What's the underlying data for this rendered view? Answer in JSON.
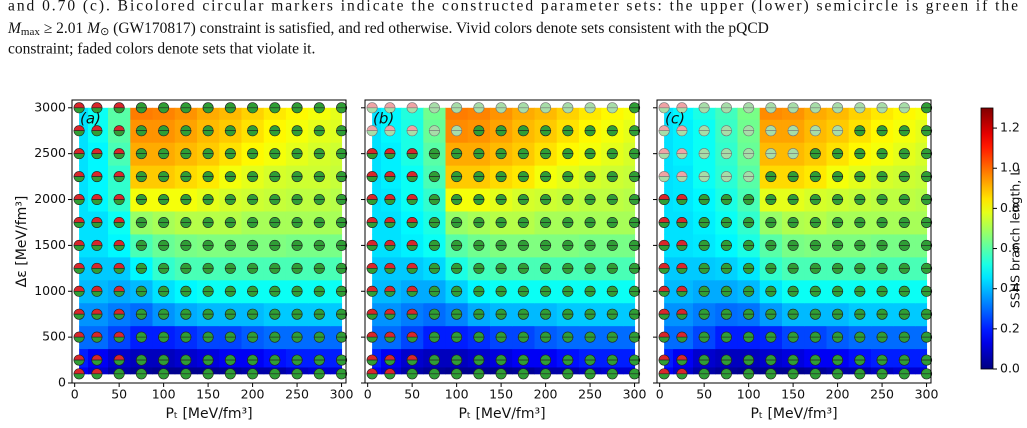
{
  "caption": {
    "line1": "and 0.70 (c). Bicolored circular markers indicate the constructed parameter sets: the upper (lower) semicircle is green if the",
    "line2": [
      "M",
      "max",
      " ≥ 2.01 ",
      "M",
      "⊙",
      " (GW170817) constraint is satisfied, and red otherwise. Vivid colors denote sets consistent with the pQCD"
    ],
    "line3": "constraint; faded colors denote sets that violate it."
  },
  "chart_data": [
    {
      "type": "heatmap",
      "label": "(a)",
      "xlabel": "Pₜ [MeV/fm³]",
      "ylabel": "Δε [MeV/fm³]",
      "x": [
        5,
        25,
        50,
        75,
        100,
        125,
        150,
        175,
        200,
        225,
        250,
        275,
        300
      ],
      "y": [
        100,
        250,
        500,
        750,
        1000,
        1250,
        1500,
        1750,
        2000,
        2250,
        2500,
        2750,
        3000
      ],
      "values": [
        [
          0.15,
          0.1,
          0.05,
          0.03,
          0.02,
          0.02,
          0.02,
          0.03,
          0.05,
          0.05,
          0.08,
          0.1,
          0.1
        ],
        [
          0.2,
          0.15,
          0.1,
          0.08,
          0.08,
          0.1,
          0.12,
          0.15,
          0.15,
          0.18,
          0.2,
          0.2,
          0.2
        ],
        [
          0.3,
          0.3,
          0.25,
          0.2,
          0.2,
          0.22,
          0.25,
          0.25,
          0.28,
          0.3,
          0.3,
          0.3,
          0.3
        ],
        [
          0.35,
          0.35,
          0.32,
          0.3,
          0.35,
          0.38,
          0.4,
          0.4,
          0.4,
          0.42,
          0.42,
          0.42,
          0.42
        ],
        [
          0.4,
          0.4,
          0.38,
          0.4,
          0.45,
          0.48,
          0.5,
          0.5,
          0.5,
          0.5,
          0.5,
          0.5,
          0.5
        ],
        [
          0.42,
          0.42,
          0.42,
          0.48,
          0.55,
          0.58,
          0.58,
          0.58,
          0.58,
          0.58,
          0.58,
          0.58,
          0.58
        ],
        [
          0.45,
          0.45,
          0.48,
          0.58,
          0.62,
          0.64,
          0.65,
          0.65,
          0.65,
          0.65,
          0.64,
          0.64,
          0.64
        ],
        [
          0.45,
          0.45,
          0.5,
          0.68,
          0.7,
          0.72,
          0.72,
          0.72,
          0.7,
          0.7,
          0.7,
          0.7,
          0.7
        ],
        [
          0.45,
          0.48,
          0.55,
          0.8,
          0.8,
          0.8,
          0.78,
          0.76,
          0.75,
          0.74,
          0.73,
          0.73,
          0.72
        ],
        [
          0.45,
          0.48,
          0.55,
          0.88,
          0.88,
          0.86,
          0.84,
          0.8,
          0.78,
          0.76,
          0.75,
          0.75,
          0.74
        ],
        [
          0.45,
          0.48,
          0.58,
          0.92,
          0.92,
          0.9,
          0.88,
          0.85,
          0.82,
          0.8,
          0.78,
          0.76,
          0.75
        ],
        [
          0.45,
          0.5,
          0.6,
          0.95,
          0.95,
          0.93,
          0.9,
          0.88,
          0.85,
          0.82,
          0.8,
          0.78,
          0.77
        ],
        [
          0.45,
          0.5,
          0.6,
          0.98,
          0.97,
          0.95,
          0.92,
          0.9,
          0.87,
          0.84,
          0.82,
          0.8,
          0.78
        ]
      ],
      "mmax_red_count": [
        2,
        3,
        3,
        3,
        3,
        3,
        3,
        3,
        3,
        3,
        3,
        3,
        3
      ],
      "faded_count": [
        0,
        0,
        0,
        0,
        0,
        0,
        0,
        0,
        0,
        0,
        0,
        0,
        0
      ],
      "xlim": [
        -3,
        305
      ],
      "ylim": [
        0,
        3085
      ],
      "xticks": [
        0,
        50,
        100,
        150,
        200,
        250,
        300
      ],
      "yticks": [
        0,
        500,
        1000,
        1500,
        2000,
        2500,
        3000
      ],
      "show_ytick_labels": true
    },
    {
      "type": "heatmap",
      "label": "(b)",
      "xlabel": "Pₜ [MeV/fm³]",
      "x": [
        5,
        25,
        50,
        75,
        100,
        125,
        150,
        175,
        200,
        225,
        250,
        275,
        300
      ],
      "y": [
        100,
        250,
        500,
        750,
        1000,
        1250,
        1500,
        1750,
        2000,
        2250,
        2500,
        2750,
        3000
      ],
      "values": [
        [
          0.15,
          0.1,
          0.05,
          0.03,
          0.02,
          0.02,
          0.02,
          0.03,
          0.05,
          0.05,
          0.08,
          0.1,
          0.1
        ],
        [
          0.2,
          0.15,
          0.1,
          0.08,
          0.08,
          0.1,
          0.12,
          0.15,
          0.15,
          0.18,
          0.2,
          0.2,
          0.2
        ],
        [
          0.3,
          0.3,
          0.25,
          0.2,
          0.2,
          0.22,
          0.25,
          0.25,
          0.28,
          0.3,
          0.3,
          0.3,
          0.3
        ],
        [
          0.35,
          0.35,
          0.32,
          0.3,
          0.33,
          0.38,
          0.4,
          0.4,
          0.4,
          0.42,
          0.42,
          0.42,
          0.42
        ],
        [
          0.4,
          0.4,
          0.38,
          0.38,
          0.43,
          0.48,
          0.5,
          0.5,
          0.5,
          0.5,
          0.5,
          0.5,
          0.5
        ],
        [
          0.42,
          0.42,
          0.42,
          0.44,
          0.52,
          0.57,
          0.58,
          0.58,
          0.58,
          0.58,
          0.58,
          0.58,
          0.58
        ],
        [
          0.45,
          0.45,
          0.47,
          0.5,
          0.6,
          0.63,
          0.65,
          0.65,
          0.65,
          0.65,
          0.64,
          0.64,
          0.64
        ],
        [
          0.45,
          0.45,
          0.48,
          0.52,
          0.68,
          0.7,
          0.72,
          0.72,
          0.7,
          0.7,
          0.7,
          0.7,
          0.7
        ],
        [
          0.45,
          0.46,
          0.5,
          0.55,
          0.8,
          0.8,
          0.78,
          0.76,
          0.75,
          0.74,
          0.73,
          0.73,
          0.72
        ],
        [
          0.45,
          0.47,
          0.5,
          0.58,
          0.88,
          0.88,
          0.86,
          0.84,
          0.8,
          0.78,
          0.76,
          0.75,
          0.74
        ],
        [
          0.45,
          0.47,
          0.52,
          0.6,
          0.92,
          0.92,
          0.9,
          0.88,
          0.85,
          0.82,
          0.8,
          0.78,
          0.76
        ],
        [
          0.45,
          0.48,
          0.52,
          0.62,
          0.96,
          0.95,
          0.93,
          0.9,
          0.88,
          0.85,
          0.82,
          0.8,
          0.78
        ],
        [
          0.45,
          0.48,
          0.53,
          0.63,
          0.98,
          0.97,
          0.95,
          0.92,
          0.9,
          0.87,
          0.84,
          0.82,
          0.8
        ]
      ],
      "mmax_red_count": [
        2,
        3,
        3,
        3,
        3,
        3,
        3,
        3,
        3,
        3,
        3,
        3,
        3
      ],
      "faded_count": [
        0,
        0,
        0,
        0,
        0,
        0,
        0,
        0,
        0,
        0,
        0,
        5,
        12
      ],
      "xlim": [
        -3,
        305
      ],
      "ylim": [
        0,
        3085
      ],
      "xticks": [
        0,
        50,
        100,
        150,
        200,
        250,
        300
      ],
      "yticks": [
        0,
        500,
        1000,
        1500,
        2000,
        2500,
        3000
      ],
      "show_ytick_labels": false
    },
    {
      "type": "heatmap",
      "label": "(c)",
      "xlabel": "Pₜ [MeV/fm³]",
      "x": [
        5,
        25,
        50,
        75,
        100,
        125,
        150,
        175,
        200,
        225,
        250,
        275,
        300
      ],
      "y": [
        100,
        250,
        500,
        750,
        1000,
        1250,
        1500,
        1750,
        2000,
        2250,
        2500,
        2750,
        3000
      ],
      "values": [
        [
          0.15,
          0.1,
          0.05,
          0.03,
          0.02,
          0.02,
          0.02,
          0.03,
          0.05,
          0.05,
          0.08,
          0.1,
          0.1
        ],
        [
          0.2,
          0.15,
          0.1,
          0.08,
          0.08,
          0.1,
          0.12,
          0.15,
          0.15,
          0.18,
          0.2,
          0.2,
          0.2
        ],
        [
          0.3,
          0.3,
          0.25,
          0.2,
          0.2,
          0.21,
          0.25,
          0.25,
          0.28,
          0.3,
          0.3,
          0.3,
          0.3
        ],
        [
          0.35,
          0.35,
          0.32,
          0.3,
          0.31,
          0.36,
          0.4,
          0.4,
          0.4,
          0.42,
          0.42,
          0.42,
          0.42
        ],
        [
          0.4,
          0.4,
          0.38,
          0.38,
          0.4,
          0.46,
          0.5,
          0.5,
          0.5,
          0.5,
          0.5,
          0.5,
          0.5
        ],
        [
          0.42,
          0.42,
          0.42,
          0.43,
          0.46,
          0.55,
          0.58,
          0.58,
          0.58,
          0.58,
          0.58,
          0.58,
          0.58
        ],
        [
          0.45,
          0.45,
          0.46,
          0.48,
          0.52,
          0.6,
          0.64,
          0.65,
          0.65,
          0.65,
          0.64,
          0.64,
          0.64
        ],
        [
          0.45,
          0.45,
          0.47,
          0.5,
          0.55,
          0.68,
          0.71,
          0.72,
          0.7,
          0.7,
          0.7,
          0.7,
          0.7
        ],
        [
          0.45,
          0.46,
          0.48,
          0.52,
          0.58,
          0.78,
          0.78,
          0.76,
          0.75,
          0.74,
          0.73,
          0.73,
          0.72
        ],
        [
          0.45,
          0.46,
          0.5,
          0.54,
          0.6,
          0.86,
          0.86,
          0.84,
          0.8,
          0.78,
          0.76,
          0.75,
          0.74
        ],
        [
          0.45,
          0.47,
          0.5,
          0.55,
          0.62,
          0.9,
          0.9,
          0.88,
          0.85,
          0.82,
          0.8,
          0.78,
          0.76
        ],
        [
          0.45,
          0.47,
          0.5,
          0.56,
          0.63,
          0.93,
          0.93,
          0.9,
          0.88,
          0.85,
          0.82,
          0.8,
          0.78
        ],
        [
          0.45,
          0.48,
          0.52,
          0.57,
          0.64,
          0.96,
          0.95,
          0.92,
          0.9,
          0.87,
          0.84,
          0.82,
          0.8
        ]
      ],
      "mmax_red_count": [
        2,
        2,
        2,
        2,
        2,
        2,
        2,
        2,
        2,
        2,
        2,
        2,
        2
      ],
      "faded_count": [
        0,
        0,
        0,
        0,
        0,
        0,
        0,
        0,
        0,
        5,
        7,
        9,
        12
      ],
      "xlim": [
        -3,
        305
      ],
      "ylim": [
        0,
        3085
      ],
      "xticks": [
        0,
        50,
        100,
        150,
        200,
        250,
        300
      ],
      "yticks": [
        0,
        500,
        1000,
        1500,
        2000,
        2500,
        3000
      ],
      "show_ytick_labels": false
    }
  ],
  "colorbar": {
    "label": "SSHS branch length, L",
    "clim": [
      0,
      1.3
    ],
    "colormap": "jet",
    "ticks": [
      {
        "value": 0,
        "label": "0.0"
      },
      0.2,
      0.4,
      0.6,
      0.8,
      {
        "value": 1,
        "label": "1.0"
      },
      1.2
    ]
  },
  "marker_colors": {
    "green": "#2f9e35",
    "red": "#d9262b",
    "green_faded": "#a7dda8",
    "red_faded": "#f0a3a4"
  }
}
